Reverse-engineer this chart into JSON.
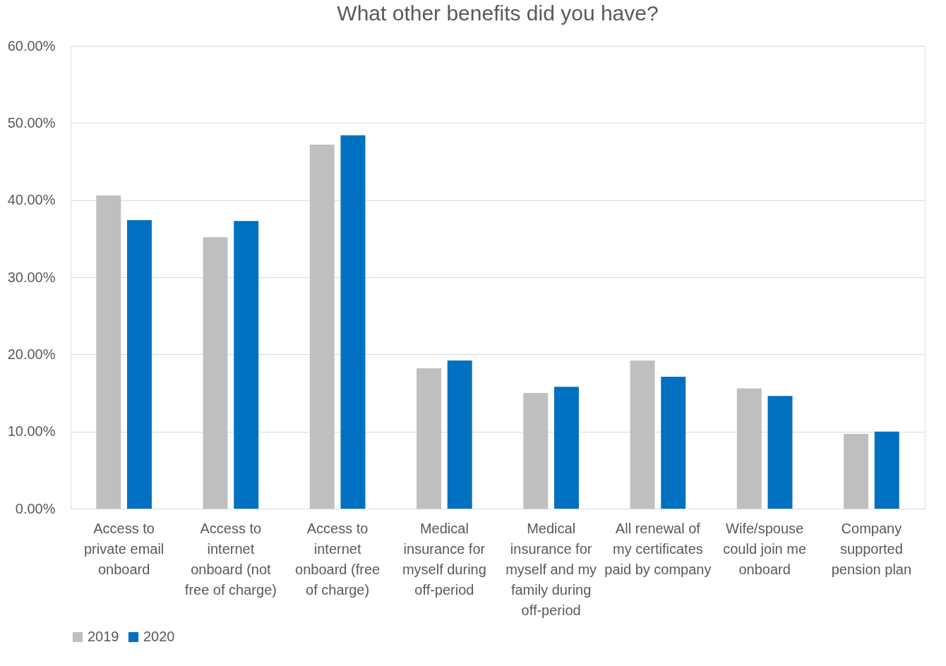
{
  "chart_data": {
    "type": "bar",
    "title": "What other benefits did you have?",
    "categories": [
      "Access to private email onboard",
      "Access to internet onboard (not free of charge)",
      "Access to internet onboard (free of charge)",
      "Medical insurance for myself during off-period",
      "Medical insurance for myself and my family during off-period",
      "All renewal of my certificates paid by company",
      "Wife/spouse could join me onboard",
      "Company supported pension plan"
    ],
    "series": [
      {
        "name": "2019",
        "color": "#bfbfbf",
        "values": [
          40.6,
          35.2,
          47.2,
          18.2,
          15.0,
          19.2,
          15.6,
          9.7
        ]
      },
      {
        "name": "2020",
        "color": "#0070c0",
        "values": [
          37.4,
          37.3,
          48.4,
          19.2,
          15.8,
          17.1,
          14.6,
          10.0
        ]
      }
    ],
    "ylim": [
      0,
      60
    ],
    "yticks": [
      {
        "value": 0,
        "label": "0.00%"
      },
      {
        "value": 10,
        "label": "10.00%"
      },
      {
        "value": 20,
        "label": "20.00%"
      },
      {
        "value": 30,
        "label": "30.00%"
      },
      {
        "value": 40,
        "label": "40.00%"
      },
      {
        "value": 50,
        "label": "50.00%"
      },
      {
        "value": 60,
        "label": "60.00%"
      }
    ],
    "grid": "y",
    "legend": "bottom"
  }
}
